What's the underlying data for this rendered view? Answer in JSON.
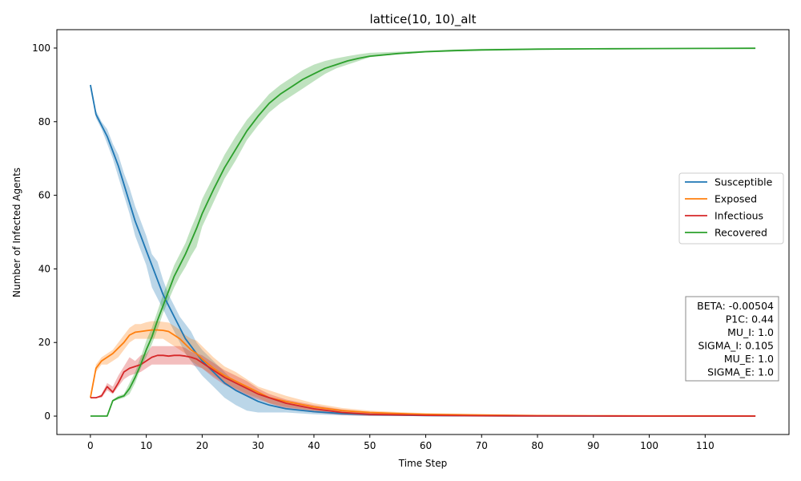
{
  "chart_data": {
    "type": "line",
    "title": "lattice(10, 10)_alt",
    "xlabel": "Time Step",
    "ylabel": "Number of Infected Agents",
    "xlim": [
      -6,
      125
    ],
    "ylim": [
      -5,
      105
    ],
    "xticks": [
      0,
      10,
      20,
      30,
      40,
      50,
      60,
      70,
      80,
      90,
      100,
      110
    ],
    "yticks": [
      0,
      20,
      40,
      60,
      80,
      100
    ],
    "grid": false,
    "legend_position": "center-right",
    "params_box": [
      "BETA: -0.00504",
      "P1C: 0.44",
      "MU_I: 1.0",
      "SIGMA_I: 0.105",
      "MU_E: 1.0",
      "SIGMA_E: 1.0"
    ],
    "series": [
      {
        "name": "Susceptible",
        "color": "#1f77b4",
        "x": [
          0,
          1,
          2,
          3,
          4,
          5,
          6,
          7,
          8,
          9,
          10,
          11,
          12,
          13,
          14,
          15,
          16,
          17,
          18,
          19,
          20,
          22,
          24,
          26,
          28,
          30,
          32,
          35,
          40,
          45,
          50,
          60,
          70,
          80,
          90,
          100,
          110,
          119
        ],
        "y": [
          90,
          82,
          79,
          76,
          72,
          68,
          63,
          58,
          53,
          49,
          45,
          41,
          37,
          33,
          30,
          27,
          24,
          21,
          19,
          17,
          15,
          12,
          9,
          7,
          5.5,
          4,
          3,
          2,
          1.2,
          0.7,
          0.4,
          0.15,
          0.08,
          0.04,
          0.02,
          0.01,
          0.01,
          0.01
        ],
        "lower": [
          90,
          81,
          78,
          74,
          70,
          65,
          60,
          55,
          49,
          45,
          41,
          35,
          32,
          29,
          26,
          23,
          20,
          17,
          15,
          13,
          11,
          8,
          5,
          3,
          1.5,
          1,
          1,
          1,
          0.5,
          0.2,
          0.1,
          0,
          0,
          0,
          0,
          0,
          0,
          0
        ],
        "upper": [
          90,
          83,
          80,
          78,
          74,
          71,
          66,
          62,
          57,
          53,
          49,
          44,
          42,
          37,
          33,
          30,
          27,
          25,
          23,
          20,
          18,
          15,
          12,
          9,
          8,
          6,
          5,
          3.5,
          2,
          1.2,
          0.8,
          0.4,
          0.2,
          0.1,
          0.05,
          0.02,
          0.02,
          0.02
        ]
      },
      {
        "name": "Exposed",
        "color": "#ff7f0e",
        "x": [
          0,
          1,
          2,
          3,
          4,
          5,
          6,
          7,
          8,
          9,
          10,
          11,
          12,
          13,
          14,
          15,
          16,
          17,
          18,
          19,
          20,
          22,
          24,
          26,
          28,
          30,
          32,
          35,
          40,
          45,
          50,
          55,
          60,
          70,
          80,
          90,
          100,
          110,
          119
        ],
        "y": [
          5,
          13,
          15,
          16,
          17,
          18.5,
          20,
          22,
          22.8,
          23,
          23.2,
          23.4,
          23.4,
          23.3,
          23,
          22,
          21,
          19.5,
          18,
          17,
          15.5,
          13,
          11,
          9.5,
          8,
          6.5,
          5,
          4,
          2.5,
          1.5,
          1,
          0.7,
          0.5,
          0.3,
          0.15,
          0.1,
          0.05,
          0.05,
          0.03
        ],
        "lower": [
          5,
          12,
          14,
          14,
          15,
          16,
          18,
          20,
          21,
          21,
          21,
          21,
          21,
          21,
          20,
          19,
          18,
          17,
          15,
          14,
          13,
          11,
          9,
          7.5,
          6,
          5,
          3.5,
          2.5,
          1.5,
          1,
          0.5,
          0.3,
          0.2,
          0.1,
          0,
          0,
          0,
          0,
          0
        ],
        "upper": [
          5,
          14,
          16,
          17,
          18,
          20,
          22,
          24,
          25,
          25,
          25.5,
          25.8,
          25.8,
          25.6,
          25.4,
          24.5,
          23.5,
          22,
          21,
          20.5,
          19,
          16,
          13.5,
          12,
          10,
          8,
          7,
          5.5,
          3.5,
          2.2,
          1.5,
          1.1,
          0.8,
          0.5,
          0.3,
          0.2,
          0.1,
          0.1,
          0.08
        ]
      },
      {
        "name": "Infectious",
        "color": "#d62728",
        "x": [
          0,
          1,
          2,
          3,
          4,
          5,
          6,
          7,
          8,
          9,
          10,
          11,
          12,
          13,
          14,
          15,
          16,
          17,
          18,
          19,
          20,
          22,
          24,
          26,
          28,
          30,
          32,
          35,
          40,
          45,
          50,
          60,
          70,
          80,
          90,
          100,
          110,
          119
        ],
        "y": [
          5,
          5,
          5.5,
          8,
          6.5,
          9,
          12,
          13,
          13.5,
          14,
          15,
          16,
          16.5,
          16.5,
          16.3,
          16.5,
          16.5,
          16.3,
          16,
          15.5,
          14.5,
          12.5,
          10.5,
          9,
          7.5,
          6,
          5,
          3.5,
          2,
          1,
          0.5,
          0.2,
          0.1,
          0.05,
          0.03,
          0.02,
          0.02,
          0.02
        ],
        "lower": [
          5,
          5,
          5,
          7,
          6,
          8,
          10,
          11,
          11.5,
          12,
          13,
          14,
          14,
          14,
          14,
          14,
          14,
          14,
          14,
          13.5,
          13,
          10.5,
          8.5,
          7,
          5.5,
          4.5,
          3.5,
          2,
          1,
          0.3,
          0,
          0,
          0,
          0,
          0,
          0,
          0,
          0
        ],
        "upper": [
          5,
          5,
          6,
          9,
          8,
          11,
          13.5,
          16,
          15,
          16.5,
          17,
          19,
          19,
          19,
          19,
          19,
          19,
          18.5,
          17.5,
          17,
          16.5,
          14.5,
          12.5,
          11,
          9.5,
          7.5,
          6,
          4.5,
          3,
          1.8,
          1,
          0.5,
          0.3,
          0.15,
          0.1,
          0.06,
          0.05,
          0.05
        ]
      },
      {
        "name": "Recovered",
        "color": "#2ca02c",
        "x": [
          0,
          1,
          2,
          3,
          4,
          5,
          6,
          7,
          8,
          9,
          10,
          11,
          12,
          13,
          14,
          15,
          16,
          17,
          18,
          19,
          20,
          22,
          24,
          26,
          28,
          30,
          32,
          34,
          36,
          38,
          40,
          42,
          44,
          46,
          48,
          50,
          55,
          60,
          65,
          70,
          80,
          90,
          100,
          110,
          119
        ],
        "y": [
          0,
          0,
          0,
          0,
          4.2,
          5,
          5.5,
          7.5,
          10.5,
          14,
          18,
          21.5,
          26,
          30,
          34,
          38,
          41,
          44,
          47.5,
          51,
          55,
          61.5,
          67.5,
          72.5,
          77.5,
          81.5,
          85,
          87.5,
          89.5,
          91.5,
          93,
          94.5,
          95.5,
          96.5,
          97.2,
          97.8,
          98.5,
          99,
          99.3,
          99.5,
          99.7,
          99.8,
          99.85,
          99.9,
          99.95
        ],
        "lower": [
          0,
          0,
          0,
          0,
          4,
          4.5,
          5,
          6,
          9,
          13,
          16,
          19.5,
          23.5,
          28,
          31.5,
          35,
          38,
          40.5,
          43.5,
          46,
          51.5,
          58,
          64.5,
          69.5,
          75,
          79,
          82.5,
          85,
          87,
          89,
          91,
          93,
          94.5,
          95.5,
          96.5,
          97.5,
          98.3,
          98.8,
          99.1,
          99.4,
          99.6,
          99.7,
          99.8,
          99.85,
          99.9
        ],
        "upper": [
          0,
          0,
          0,
          0,
          4.4,
          5.5,
          6,
          9,
          12,
          16,
          20.5,
          24,
          28.5,
          33,
          37,
          41,
          44,
          47,
          51,
          54.5,
          59,
          65,
          71,
          76,
          80.5,
          84,
          87.5,
          90,
          92,
          94,
          95.5,
          96.5,
          97.2,
          97.8,
          98.3,
          98.7,
          99,
          99.3,
          99.6,
          99.8,
          99.9,
          99.95,
          100,
          100,
          100
        ]
      }
    ]
  }
}
